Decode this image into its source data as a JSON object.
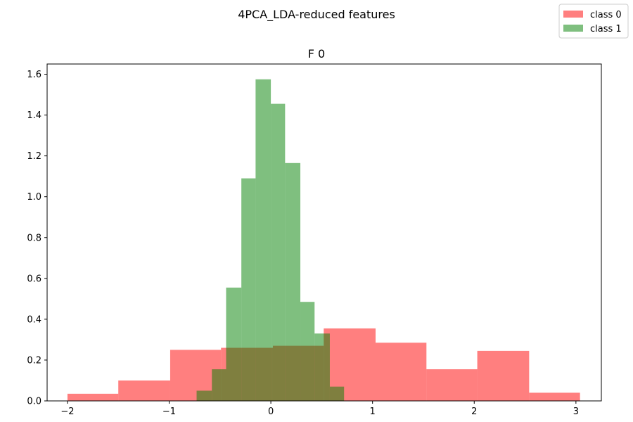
{
  "figure": {
    "suptitle": "4PCA_LDA-reduced features"
  },
  "chart_data": {
    "type": "bar",
    "title": "F 0",
    "xlabel": "",
    "ylabel": "",
    "xlim": [
      -2.2,
      3.25
    ],
    "ylim": [
      0,
      1.65
    ],
    "grid": false,
    "legend": {
      "placement": "top-right",
      "entries": [
        "class 0",
        "class 1"
      ]
    },
    "x_ticks": [
      {
        "value": -2,
        "label": "−2"
      },
      {
        "value": -1,
        "label": "−1"
      },
      {
        "value": 0,
        "label": "0"
      },
      {
        "value": 1,
        "label": "1"
      },
      {
        "value": 2,
        "label": "2"
      },
      {
        "value": 3,
        "label": "3"
      }
    ],
    "y_ticks": [
      {
        "value": 0.0,
        "label": "0.0"
      },
      {
        "value": 0.2,
        "label": "0.2"
      },
      {
        "value": 0.4,
        "label": "0.4"
      },
      {
        "value": 0.6,
        "label": "0.6"
      },
      {
        "value": 0.8,
        "label": "0.8"
      },
      {
        "value": 1.0,
        "label": "1.0"
      },
      {
        "value": 1.2,
        "label": "1.2"
      },
      {
        "value": 1.4,
        "label": "1.4"
      },
      {
        "value": 1.6,
        "label": "1.6"
      }
    ],
    "series": [
      {
        "name": "class 0",
        "color": "#ff0000",
        "alpha": 0.5,
        "bin_edges": [
          -2.0,
          -1.5,
          -0.99,
          -0.49,
          0.02,
          0.52,
          1.03,
          1.53,
          2.03,
          2.54,
          3.04
        ],
        "values": [
          0.035,
          0.1,
          0.25,
          0.26,
          0.27,
          0.355,
          0.285,
          0.155,
          0.245,
          0.04
        ]
      },
      {
        "name": "class 1",
        "color": "#008000",
        "alpha": 0.5,
        "bin_edges": [
          -0.73,
          -0.58,
          -0.44,
          -0.29,
          -0.15,
          0.0,
          0.14,
          0.29,
          0.43,
          0.58,
          0.72
        ],
        "values": [
          0.05,
          0.155,
          0.555,
          1.09,
          1.575,
          1.455,
          1.165,
          0.485,
          0.33,
          0.07
        ]
      }
    ]
  }
}
